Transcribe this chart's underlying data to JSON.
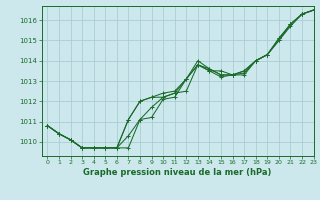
{
  "title": "Graphe pression niveau de la mer (hPa)",
  "xlim": [
    -0.5,
    23
  ],
  "ylim": [
    1009.3,
    1016.7
  ],
  "yticks": [
    1010,
    1011,
    1012,
    1013,
    1014,
    1015,
    1016
  ],
  "xticks": [
    0,
    1,
    2,
    3,
    4,
    5,
    6,
    7,
    8,
    9,
    10,
    11,
    12,
    13,
    14,
    15,
    16,
    17,
    18,
    19,
    20,
    21,
    22,
    23
  ],
  "bg_color": "#cce8ed",
  "grid_color": "#aacdd4",
  "line_color": "#1a6b2a",
  "series": [
    [
      1010.8,
      1010.4,
      1010.1,
      1009.7,
      1009.7,
      1009.7,
      1009.7,
      1009.7,
      1011.1,
      1011.2,
      1012.1,
      1012.2,
      1013.1,
      1014.0,
      1013.6,
      1013.3,
      1013.3,
      1013.3,
      1014.0,
      1014.3,
      1015.1,
      1015.8,
      1016.3,
      1016.5
    ],
    [
      1010.8,
      1010.4,
      1010.1,
      1009.7,
      1009.7,
      1009.7,
      1009.7,
      1010.3,
      1011.1,
      1011.7,
      1012.2,
      1012.4,
      1012.5,
      1013.8,
      1013.6,
      1013.3,
      1013.3,
      1013.5,
      1014.0,
      1014.3,
      1015.1,
      1015.8,
      1016.3,
      1016.5
    ],
    [
      1010.8,
      1010.4,
      1010.1,
      1009.7,
      1009.7,
      1009.7,
      1009.7,
      1011.1,
      1012.0,
      1012.2,
      1012.2,
      1012.4,
      1013.1,
      1013.8,
      1013.5,
      1013.2,
      1013.3,
      1013.5,
      1014.0,
      1014.3,
      1015.0,
      1015.8,
      1016.3,
      1016.5
    ],
    [
      1010.8,
      1010.4,
      1010.1,
      1009.7,
      1009.7,
      1009.7,
      1009.7,
      1011.1,
      1012.0,
      1012.2,
      1012.4,
      1012.5,
      1013.1,
      1013.8,
      1013.5,
      1013.5,
      1013.3,
      1013.4,
      1014.0,
      1014.3,
      1015.0,
      1015.7,
      1016.3,
      1016.5
    ]
  ]
}
